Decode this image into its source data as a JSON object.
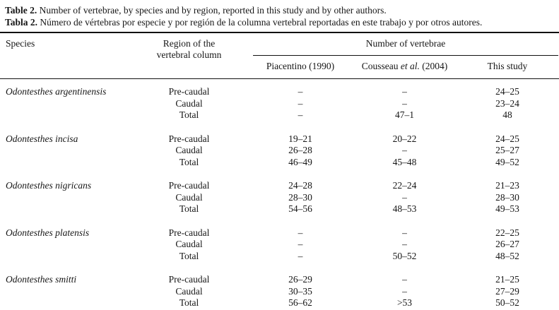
{
  "caption": {
    "en": {
      "label": "Table 2.",
      "text": " Number of vertebrae, by species and by region, reported in this study and by other authors."
    },
    "es": {
      "label": "Tabla 2.",
      "text": " Número de vértebras por especie y por región de la columna vertebral reportadas en este trabajo y por otros autores."
    }
  },
  "header": {
    "species": "Species",
    "region_line1": "Region of the",
    "region_line2": "vertebral column",
    "group": "Number of vertebrae",
    "columns": {
      "piacentino": "Piacentino (1990)",
      "cousseau_pre": "Cousseau ",
      "cousseau_italic": "et al.",
      "cousseau_post": " (2004)",
      "this_study": "This study"
    }
  },
  "table": {
    "species": [
      {
        "name": "Odontesthes argentinensis",
        "rows": [
          {
            "region": "Pre-caudal",
            "piacentino": "–",
            "cousseau": "–",
            "this_study": "24–25"
          },
          {
            "region": "Caudal",
            "piacentino": "–",
            "cousseau": "–",
            "this_study": "23–24"
          },
          {
            "region": "Total",
            "piacentino": "–",
            "cousseau": "47–1",
            "this_study": "48"
          }
        ]
      },
      {
        "name": "Odontesthes incisa",
        "rows": [
          {
            "region": "Pre-caudal",
            "piacentino": "19–21",
            "cousseau": "20–22",
            "this_study": "24–25"
          },
          {
            "region": "Caudal",
            "piacentino": "26–28",
            "cousseau": "–",
            "this_study": "25–27"
          },
          {
            "region": "Total",
            "piacentino": "46–49",
            "cousseau": "45–48",
            "this_study": "49–52"
          }
        ]
      },
      {
        "name": "Odontesthes nigricans",
        "rows": [
          {
            "region": "Pre-caudal",
            "piacentino": "24–28",
            "cousseau": "22–24",
            "this_study": "21–23"
          },
          {
            "region": "Caudal",
            "piacentino": "28–30",
            "cousseau": "–",
            "this_study": "28–30"
          },
          {
            "region": "Total",
            "piacentino": "54–56",
            "cousseau": "48–53",
            "this_study": "49–53"
          }
        ]
      },
      {
        "name": "Odontesthes platensis",
        "rows": [
          {
            "region": "Pre-caudal",
            "piacentino": "–",
            "cousseau": "–",
            "this_study": "22–25"
          },
          {
            "region": "Caudal",
            "piacentino": "–",
            "cousseau": "–",
            "this_study": "26–27"
          },
          {
            "region": "Total",
            "piacentino": "–",
            "cousseau": "50–52",
            "this_study": "48–52"
          }
        ]
      },
      {
        "name": "Odontesthes smitti",
        "rows": [
          {
            "region": "Pre-caudal",
            "piacentino": "26–29",
            "cousseau": "–",
            "this_study": "21–25"
          },
          {
            "region": "Caudal",
            "piacentino": "30–35",
            "cousseau": "–",
            "this_study": "27–29"
          },
          {
            "region": "Total",
            "piacentino": "56–62",
            "cousseau": ">53",
            "this_study": "50–52"
          }
        ]
      }
    ]
  }
}
